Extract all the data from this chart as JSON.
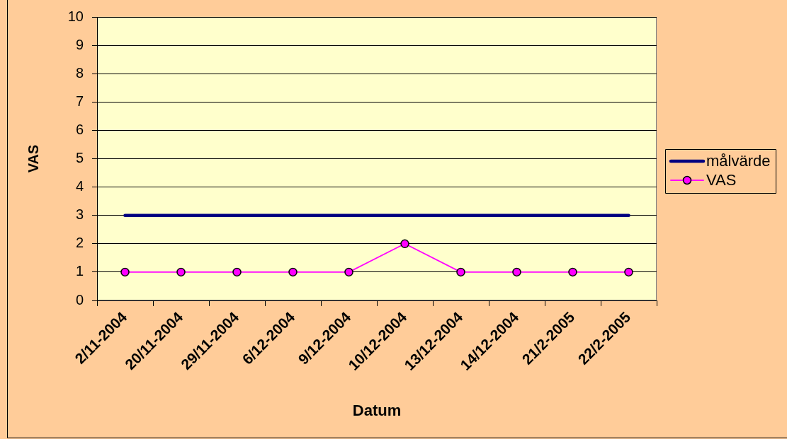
{
  "chart_data": {
    "type": "line",
    "xlabel": "Datum",
    "ylabel": "VAS",
    "categories": [
      "2/11-2004",
      "20/11-2004",
      "29/11-2004",
      "6/12-2004",
      "9/12-2004",
      "10/12-2004",
      "13/12-2004",
      "14/12-2004",
      "21/2-2005",
      "22/2-2005"
    ],
    "series": [
      {
        "name": "målvärde",
        "color": "#000080",
        "values": [
          3,
          3,
          3,
          3,
          3,
          3,
          3,
          3,
          3,
          3
        ],
        "marker": "none"
      },
      {
        "name": "VAS",
        "color": "#ff00ff",
        "values": [
          1,
          1,
          1,
          1,
          1,
          2,
          1,
          1,
          1,
          1
        ],
        "marker": "circle"
      }
    ],
    "ylim": [
      0,
      10
    ],
    "yticks": [
      0,
      1,
      2,
      3,
      4,
      5,
      6,
      7,
      8,
      9,
      10
    ],
    "grid": "y",
    "legend": "right"
  }
}
